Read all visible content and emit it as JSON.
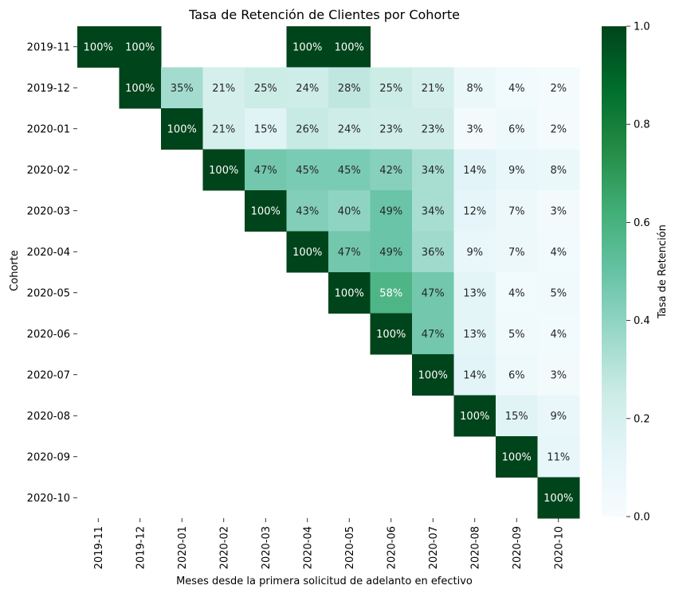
{
  "chart_data": {
    "type": "heatmap",
    "title": "Tasa de Retención de Clientes por Cohorte",
    "xlabel": "Meses desde la primera solicitud de adelanto en efectivo",
    "ylabel": "Cohorte",
    "colorbar_label": "Tasa de Retención",
    "colormap": "BuGn",
    "vmin": 0.0,
    "vmax": 1.0,
    "colorbar_ticks": [
      "0.0",
      "0.2",
      "0.4",
      "0.6",
      "0.8",
      "1.0"
    ],
    "x_categories": [
      "2019-11",
      "2019-12",
      "2020-01",
      "2020-02",
      "2020-03",
      "2020-04",
      "2020-05",
      "2020-06",
      "2020-07",
      "2020-08",
      "2020-09",
      "2020-10"
    ],
    "y_categories": [
      "2019-11",
      "2019-12",
      "2020-01",
      "2020-02",
      "2020-03",
      "2020-04",
      "2020-05",
      "2020-06",
      "2020-07",
      "2020-08",
      "2020-09",
      "2020-10"
    ],
    "values": [
      [
        1.0,
        1.0,
        null,
        null,
        null,
        1.0,
        1.0,
        null,
        null,
        null,
        null,
        null
      ],
      [
        null,
        1.0,
        0.35,
        0.21,
        0.25,
        0.24,
        0.28,
        0.25,
        0.21,
        0.08,
        0.04,
        0.02
      ],
      [
        null,
        null,
        1.0,
        0.21,
        0.15,
        0.26,
        0.24,
        0.23,
        0.23,
        0.03,
        0.06,
        0.02
      ],
      [
        null,
        null,
        null,
        1.0,
        0.47,
        0.45,
        0.45,
        0.42,
        0.34,
        0.14,
        0.09,
        0.08
      ],
      [
        null,
        null,
        null,
        null,
        1.0,
        0.43,
        0.4,
        0.49,
        0.34,
        0.12,
        0.07,
        0.03
      ],
      [
        null,
        null,
        null,
        null,
        null,
        1.0,
        0.47,
        0.49,
        0.36,
        0.09,
        0.07,
        0.04
      ],
      [
        null,
        null,
        null,
        null,
        null,
        null,
        1.0,
        0.58,
        0.47,
        0.13,
        0.04,
        0.05
      ],
      [
        null,
        null,
        null,
        null,
        null,
        null,
        null,
        1.0,
        0.47,
        0.13,
        0.05,
        0.04
      ],
      [
        null,
        null,
        null,
        null,
        null,
        null,
        null,
        null,
        1.0,
        0.14,
        0.06,
        0.03
      ],
      [
        null,
        null,
        null,
        null,
        null,
        null,
        null,
        null,
        null,
        1.0,
        0.15,
        0.09
      ],
      [
        null,
        null,
        null,
        null,
        null,
        null,
        null,
        null,
        null,
        null,
        1.0,
        0.11
      ],
      [
        null,
        null,
        null,
        null,
        null,
        null,
        null,
        null,
        null,
        null,
        null,
        1.0
      ]
    ]
  }
}
